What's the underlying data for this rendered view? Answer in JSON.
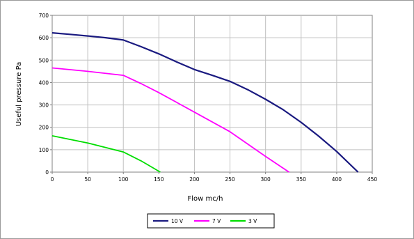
{
  "chart_data": {
    "type": "line",
    "xlabel": "Flow mc/h",
    "ylabel": "Useful pressure Pa",
    "xlim": [
      0,
      450
    ],
    "ylim": [
      0,
      700
    ],
    "xticks": [
      0,
      50,
      100,
      150,
      200,
      250,
      300,
      350,
      400,
      450
    ],
    "yticks": [
      0,
      100,
      200,
      300,
      400,
      500,
      600,
      700
    ],
    "grid": true,
    "legend_position": "bottom",
    "series": [
      {
        "name": "10 V",
        "color": "#1a1a80",
        "points": [
          [
            0,
            622
          ],
          [
            25,
            615
          ],
          [
            50,
            608
          ],
          [
            75,
            600
          ],
          [
            100,
            590
          ],
          [
            125,
            560
          ],
          [
            150,
            528
          ],
          [
            175,
            492
          ],
          [
            200,
            458
          ],
          [
            225,
            432
          ],
          [
            250,
            405
          ],
          [
            275,
            368
          ],
          [
            300,
            325
          ],
          [
            325,
            278
          ],
          [
            350,
            222
          ],
          [
            375,
            160
          ],
          [
            400,
            92
          ],
          [
            430,
            0
          ]
        ]
      },
      {
        "name": "7 V",
        "color": "#ff00ff",
        "points": [
          [
            0,
            465
          ],
          [
            50,
            450
          ],
          [
            100,
            432
          ],
          [
            125,
            395
          ],
          [
            150,
            355
          ],
          [
            200,
            268
          ],
          [
            250,
            180
          ],
          [
            300,
            70
          ],
          [
            333,
            0
          ]
        ]
      },
      {
        "name": "3 V",
        "color": "#00dd00",
        "points": [
          [
            0,
            162
          ],
          [
            50,
            130
          ],
          [
            100,
            90
          ],
          [
            125,
            50
          ],
          [
            152,
            0
          ]
        ]
      }
    ]
  }
}
